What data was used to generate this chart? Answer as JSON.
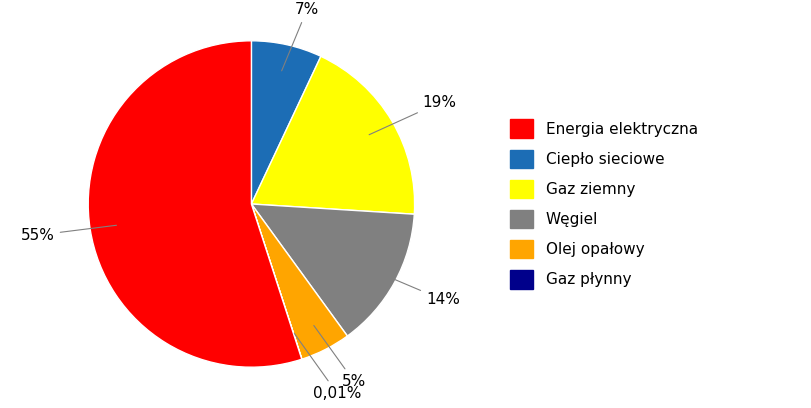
{
  "labels": [
    "Energia elektryczna",
    "Ciepło sieciowe",
    "Gaz ziemny",
    "Węgiel",
    "Olej opałowy",
    "Gaz płynny"
  ],
  "values": [
    55,
    7,
    19,
    14,
    5,
    0.01
  ],
  "colors": [
    "#ff0000",
    "#1c6db5",
    "#ffff00",
    "#808080",
    "#ffa500",
    "#00008b"
  ],
  "labels_pct": [
    "55%",
    "7%",
    "19%",
    "14%",
    "5%",
    "0,01%"
  ],
  "background_color": "#ffffff",
  "legend_fontsize": 11,
  "pct_fontsize": 11
}
